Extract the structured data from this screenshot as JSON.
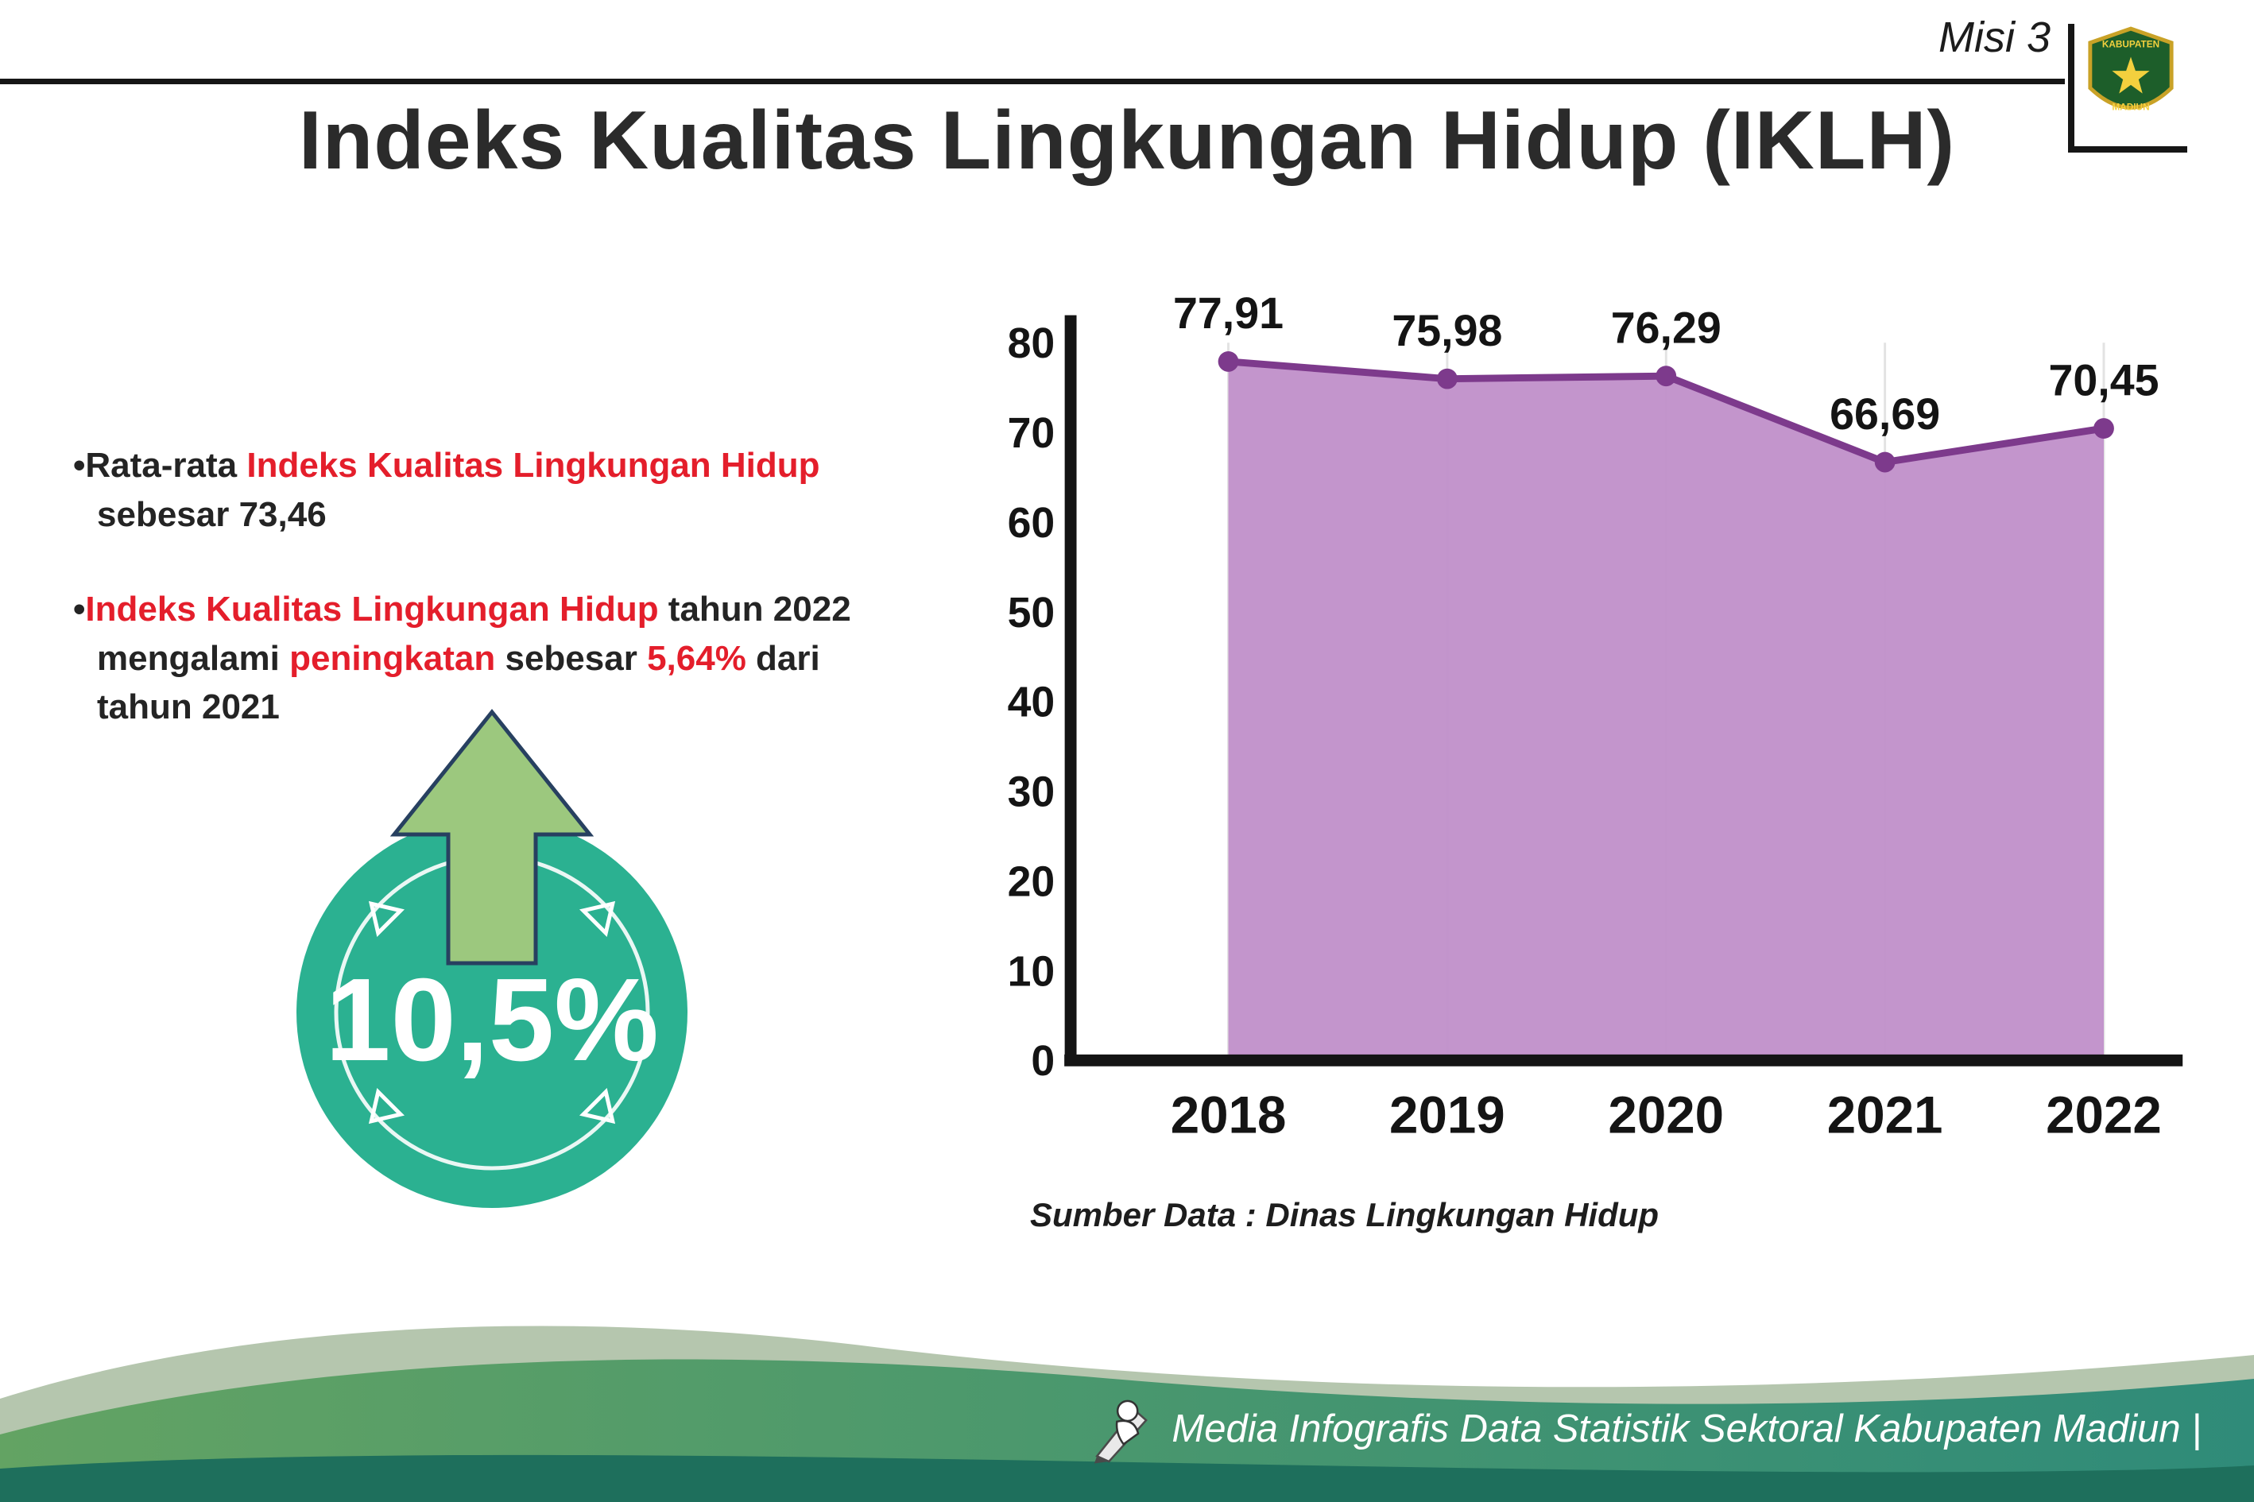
{
  "header": {
    "misi_label": "Misi 3",
    "title": "Indeks Kualitas Lingkungan Hidup (IKLH)"
  },
  "logo": {
    "region_label": "KABUPATEN",
    "city_label": "MADIUN"
  },
  "bullets": {
    "marker": "•",
    "b1_seg1": "Rata-rata ",
    "b1_seg2": "Indeks Kualitas Lingkungan Hidup",
    "b1_seg3": " sebesar 73,46",
    "b2_seg1": "Indeks Kualitas Lingkungan Hidup",
    "b2_seg2": " tahun 2022 mengalami ",
    "b2_seg3": "peningkatan",
    "b2_seg4": " sebesar ",
    "b2_seg5": "5,64%",
    "b2_seg6": " dari tahun 2021"
  },
  "badge": {
    "value": "10,5%"
  },
  "chart": {
    "source_note": "Sumber Data : Dinas Lingkungan Hidup"
  },
  "chart_data": {
    "type": "area",
    "categories": [
      "2018",
      "2019",
      "2020",
      "2021",
      "2022"
    ],
    "values": [
      77.91,
      75.98,
      76.29,
      66.69,
      70.45
    ],
    "value_labels": [
      "77,91",
      "75,98",
      "76,29",
      "66,69",
      "70,45"
    ],
    "title": "Indeks Kualitas Lingkungan Hidup (IKLH)",
    "xlabel": "",
    "ylabel": "",
    "ylim": [
      0,
      80
    ],
    "yticks": [
      0,
      10,
      20,
      30,
      40,
      50,
      60,
      70,
      80
    ],
    "grid": "vertical-light",
    "legend": "none",
    "area_color": "#c08fc9",
    "line_color": "#7d3a8c",
    "point_color": "#7d3a8c"
  },
  "footer": {
    "credit": "Media Infografis Data Statistik Sektoral Kabupaten Madiun |"
  },
  "colors": {
    "accent_red": "#e41e2b",
    "badge_teal": "#2bb191",
    "arrow_green": "#9cc87e",
    "text_dark": "#262626",
    "footer_green": "#5aa05f",
    "footer_teal": "#2f8b79"
  }
}
